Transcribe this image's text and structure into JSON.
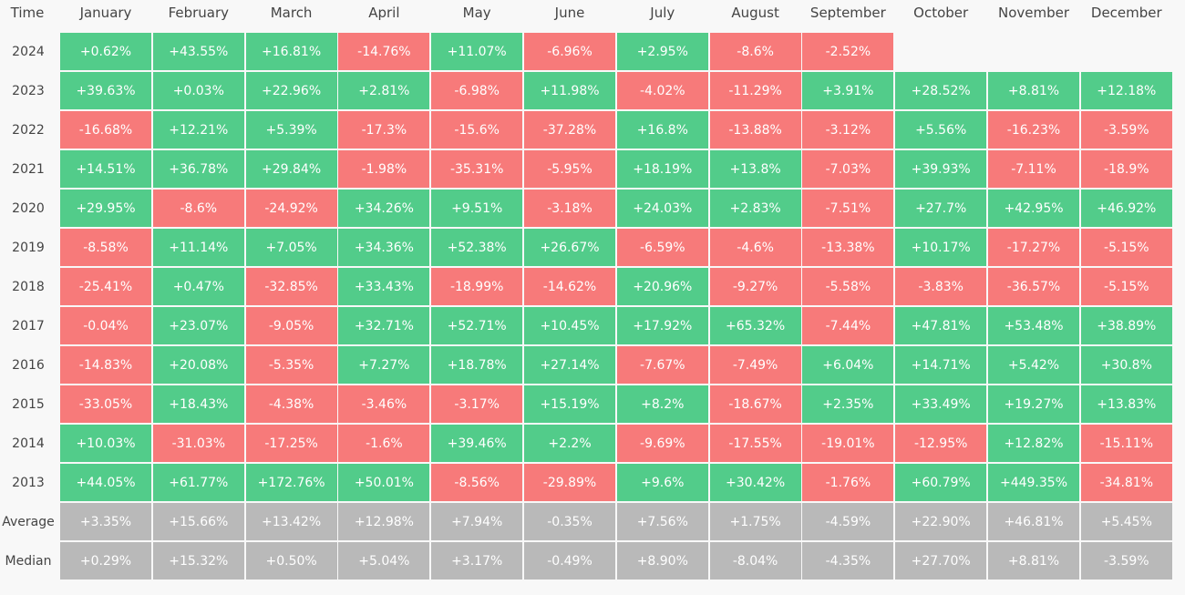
{
  "colors": {
    "up": "#52cc8a",
    "down": "#f77a7a",
    "summary": "#b9b9b9"
  },
  "header": [
    "Time",
    "January",
    "February",
    "March",
    "April",
    "May",
    "June",
    "July",
    "August",
    "September",
    "October",
    "November",
    "December"
  ],
  "rows": [
    {
      "label": "2024",
      "cells": [
        "+0.62%",
        "+43.55%",
        "+16.81%",
        "-14.76%",
        "+11.07%",
        "-6.96%",
        "+2.95%",
        "-8.6%",
        "-2.52%"
      ]
    },
    {
      "label": "2023",
      "cells": [
        "+39.63%",
        "+0.03%",
        "+22.96%",
        "+2.81%",
        "-6.98%",
        "+11.98%",
        "-4.02%",
        "-11.29%",
        "+3.91%",
        "+28.52%",
        "+8.81%",
        "+12.18%"
      ]
    },
    {
      "label": "2022",
      "cells": [
        "-16.68%",
        "+12.21%",
        "+5.39%",
        "-17.3%",
        "-15.6%",
        "-37.28%",
        "+16.8%",
        "-13.88%",
        "-3.12%",
        "+5.56%",
        "-16.23%",
        "-3.59%"
      ]
    },
    {
      "label": "2021",
      "cells": [
        "+14.51%",
        "+36.78%",
        "+29.84%",
        "-1.98%",
        "-35.31%",
        "-5.95%",
        "+18.19%",
        "+13.8%",
        "-7.03%",
        "+39.93%",
        "-7.11%",
        "-18.9%"
      ]
    },
    {
      "label": "2020",
      "cells": [
        "+29.95%",
        "-8.6%",
        "-24.92%",
        "+34.26%",
        "+9.51%",
        "-3.18%",
        "+24.03%",
        "+2.83%",
        "-7.51%",
        "+27.7%",
        "+42.95%",
        "+46.92%"
      ]
    },
    {
      "label": "2019",
      "cells": [
        "-8.58%",
        "+11.14%",
        "+7.05%",
        "+34.36%",
        "+52.38%",
        "+26.67%",
        "-6.59%",
        "-4.6%",
        "-13.38%",
        "+10.17%",
        "-17.27%",
        "-5.15%"
      ]
    },
    {
      "label": "2018",
      "cells": [
        "-25.41%",
        "+0.47%",
        "-32.85%",
        "+33.43%",
        "-18.99%",
        "-14.62%",
        "+20.96%",
        "-9.27%",
        "-5.58%",
        "-3.83%",
        "-36.57%",
        "-5.15%"
      ]
    },
    {
      "label": "2017",
      "cells": [
        "-0.04%",
        "+23.07%",
        "-9.05%",
        "+32.71%",
        "+52.71%",
        "+10.45%",
        "+17.92%",
        "+65.32%",
        "-7.44%",
        "+47.81%",
        "+53.48%",
        "+38.89%"
      ]
    },
    {
      "label": "2016",
      "cells": [
        "-14.83%",
        "+20.08%",
        "-5.35%",
        "+7.27%",
        "+18.78%",
        "+27.14%",
        "-7.67%",
        "-7.49%",
        "+6.04%",
        "+14.71%",
        "+5.42%",
        "+30.8%"
      ]
    },
    {
      "label": "2015",
      "cells": [
        "-33.05%",
        "+18.43%",
        "-4.38%",
        "-3.46%",
        "-3.17%",
        "+15.19%",
        "+8.2%",
        "-18.67%",
        "+2.35%",
        "+33.49%",
        "+19.27%",
        "+13.83%"
      ]
    },
    {
      "label": "2014",
      "cells": [
        "+10.03%",
        "-31.03%",
        "-17.25%",
        "-1.6%",
        "+39.46%",
        "+2.2%",
        "-9.69%",
        "-17.55%",
        "-19.01%",
        "-12.95%",
        "+12.82%",
        "-15.11%"
      ]
    },
    {
      "label": "2013",
      "cells": [
        "+44.05%",
        "+61.77%",
        "+172.76%",
        "+50.01%",
        "-8.56%",
        "-29.89%",
        "+9.6%",
        "+30.42%",
        "-1.76%",
        "+60.79%",
        "+449.35%",
        "-34.81%"
      ]
    }
  ],
  "summary_rows": [
    {
      "label": "Average",
      "cells": [
        "+3.35%",
        "+15.66%",
        "+13.42%",
        "+12.98%",
        "+7.94%",
        "-0.35%",
        "+7.56%",
        "+1.75%",
        "-4.59%",
        "+22.90%",
        "+46.81%",
        "+5.45%"
      ]
    },
    {
      "label": "Median",
      "cells": [
        "+0.29%",
        "+15.32%",
        "+0.50%",
        "+5.04%",
        "+3.17%",
        "-0.49%",
        "+8.90%",
        "-8.04%",
        "-4.35%",
        "+27.70%",
        "+8.81%",
        "-3.59%"
      ]
    }
  ]
}
